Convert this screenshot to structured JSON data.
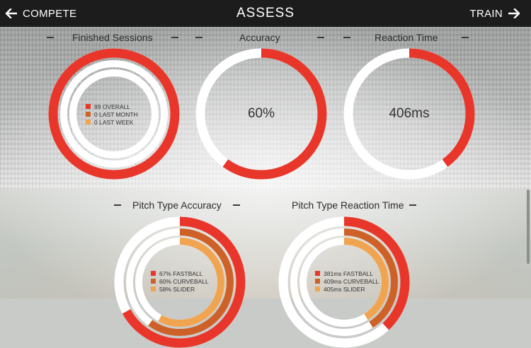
{
  "header": {
    "back_label": "COMPETE",
    "title": "ASSESS",
    "forward_label": "TRAIN"
  },
  "colors": {
    "red": "#e8362b",
    "orange": "#cd6128",
    "light_orange": "#f1a450",
    "track": "#ffffff",
    "header_bg": "#1c1c1c"
  },
  "panels": {
    "finished_sessions": {
      "title": "Finished Sessions",
      "legend": [
        {
          "label": "89 OVERALL",
          "color": "#e8362b"
        },
        {
          "label": "0 LAST MONTH",
          "color": "#cd6128"
        },
        {
          "label": "0 LAST WEEK",
          "color": "#f1a450"
        }
      ],
      "fill_fractions": [
        1.0,
        0.0,
        0.0
      ]
    },
    "accuracy": {
      "title": "Accuracy",
      "value": "60%",
      "fill_fraction": 0.6
    },
    "reaction_time": {
      "title": "Reaction Time",
      "value": "406ms",
      "fill_fraction": 0.4
    },
    "pitch_type_accuracy": {
      "title": "Pitch Type Accuracy",
      "legend": [
        {
          "label": "67% FASTBALL",
          "color": "#e8362b"
        },
        {
          "label": "60% CURVEBALL",
          "color": "#cd6128"
        },
        {
          "label": "58% SLIDER",
          "color": "#f1a450"
        }
      ],
      "fill_fractions": [
        0.67,
        0.6,
        0.58
      ]
    },
    "pitch_type_reaction_time": {
      "title": "Pitch Type Reaction Time",
      "legend": [
        {
          "label": "381ms FASTBALL",
          "color": "#e8362b"
        },
        {
          "label": "409ms CURVEBALL",
          "color": "#cd6128"
        },
        {
          "label": "405ms SLIDER",
          "color": "#f1a450"
        }
      ],
      "fill_fractions": [
        0.38,
        0.41,
        0.41
      ]
    }
  }
}
